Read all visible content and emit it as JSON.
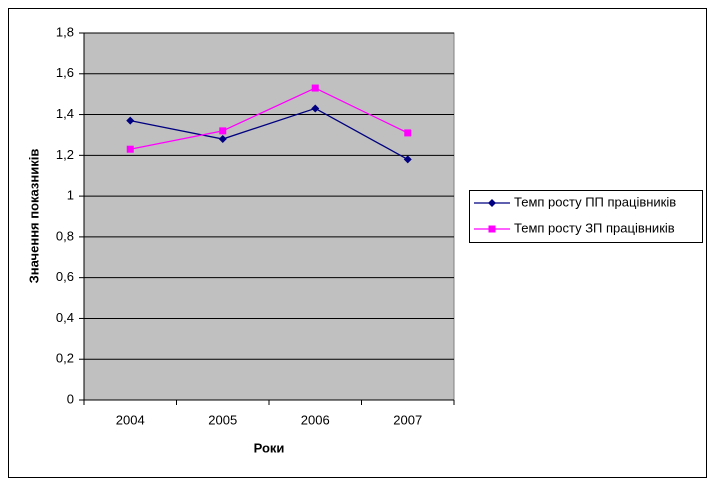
{
  "chart_data": {
    "type": "line",
    "y_label": "Значення показників",
    "x_label": "Роки",
    "categories": [
      "2004",
      "2005",
      "2006",
      "2007"
    ],
    "series": [
      {
        "name": "Темп росту ПП працівників",
        "color": "#000080",
        "marker": "diamond",
        "values": [
          1.37,
          1.28,
          1.43,
          1.18
        ]
      },
      {
        "name": "Темп росту ЗП працівників",
        "color": "#ff00ff",
        "marker": "square",
        "values": [
          1.23,
          1.32,
          1.53,
          1.31
        ]
      }
    ],
    "ylim": [
      0,
      1.8
    ],
    "yticks": [
      0,
      {
        "value": 0.2,
        "label": "0,2"
      },
      {
        "value": 0.4,
        "label": "0,4"
      },
      {
        "value": 0.6,
        "label": "0,6"
      },
      {
        "value": 0.8,
        "label": "0,8"
      },
      1,
      {
        "value": 1.2,
        "label": "1,2"
      },
      {
        "value": 1.4,
        "label": "1,4"
      },
      {
        "value": 1.6,
        "label": "1,6"
      },
      {
        "value": 1.8,
        "label": "1,8"
      }
    ],
    "grid": true,
    "plot_background": "#c0c0c0",
    "legend": "right"
  }
}
